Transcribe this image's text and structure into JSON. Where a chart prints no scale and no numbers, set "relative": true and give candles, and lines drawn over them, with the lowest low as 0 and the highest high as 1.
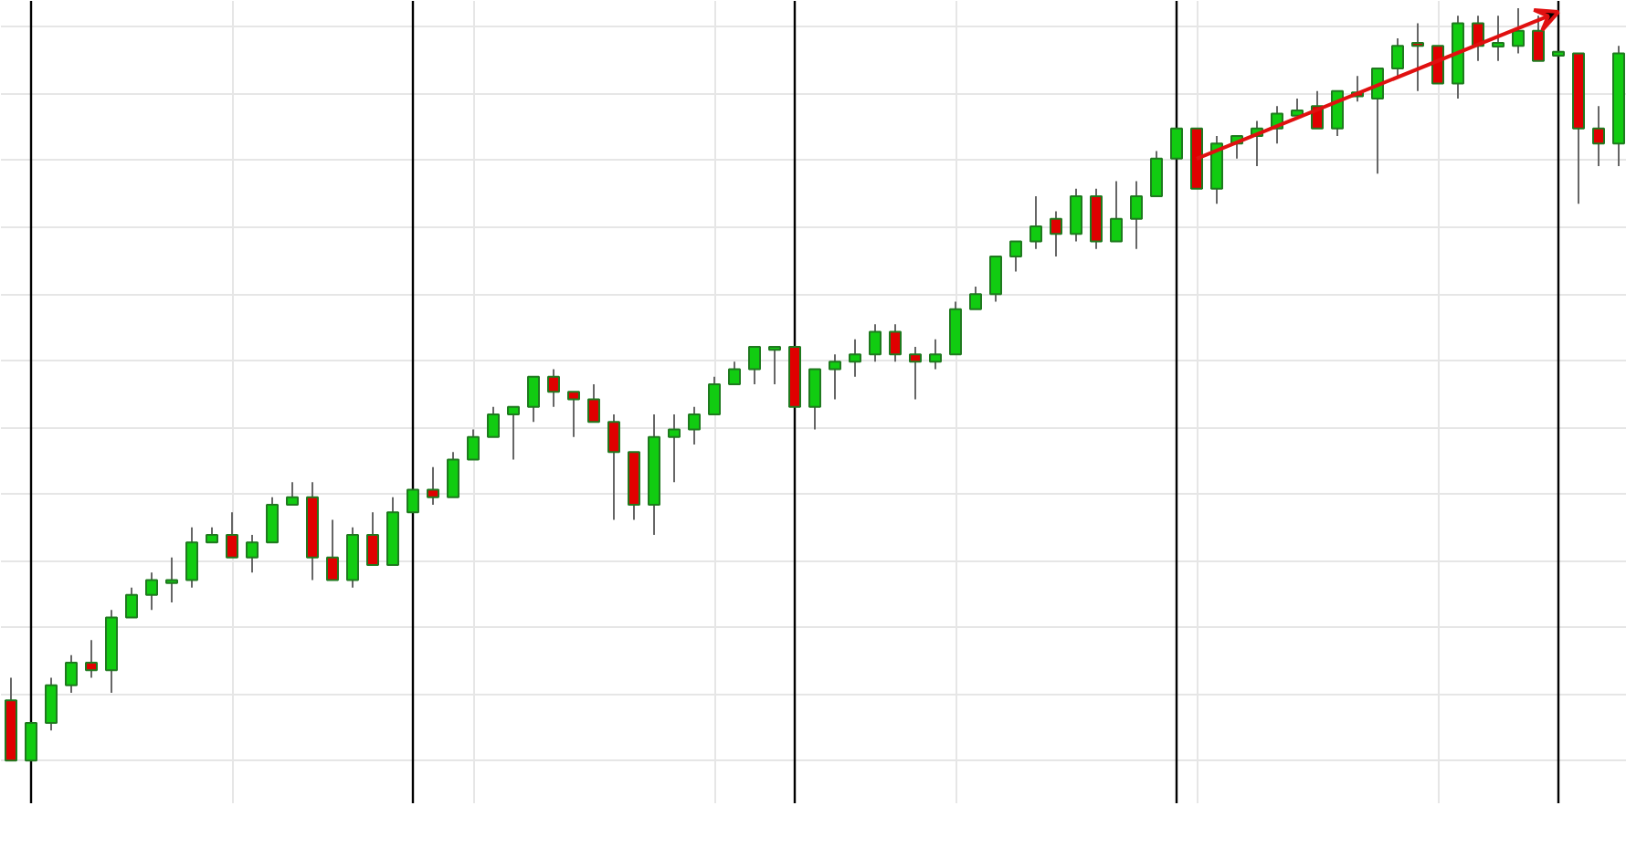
{
  "chart_data": {
    "type": "candlestick",
    "relative": true,
    "grid": true,
    "categories": [
      null,
      null,
      null,
      null,
      null,
      null,
      null,
      null,
      null,
      null,
      null,
      null,
      null,
      null,
      null,
      null,
      null,
      null,
      null,
      null,
      null,
      null,
      null,
      null,
      null,
      null,
      null,
      null,
      null,
      null,
      null,
      null,
      null,
      null,
      null,
      null,
      null,
      null,
      null,
      null,
      null,
      null,
      null,
      null,
      null,
      null,
      null,
      null,
      null,
      null,
      null,
      null,
      null,
      null,
      null,
      null,
      null,
      null,
      null,
      null,
      null,
      null,
      null,
      null,
      null,
      null,
      null,
      null,
      null,
      null,
      null,
      null,
      null,
      null,
      null,
      null,
      null,
      null,
      null,
      null,
      null
    ],
    "ohlc": [
      [
        0.08,
        0.11,
        0,
        0
      ],
      [
        0,
        0.05,
        0,
        0.05
      ],
      [
        0.05,
        0.11,
        0.04,
        0.1
      ],
      [
        0.1,
        0.14,
        0.09,
        0.13
      ],
      [
        0.13,
        0.16,
        0.11,
        0.12
      ],
      [
        0.12,
        0.2,
        0.09,
        0.19
      ],
      [
        0.19,
        0.23,
        0.19,
        0.22
      ],
      [
        0.22,
        0.25,
        0.2,
        0.24
      ],
      [
        0.24,
        0.27,
        0.21,
        0.24
      ],
      [
        0.24,
        0.31,
        0.23,
        0.29
      ],
      [
        0.29,
        0.31,
        0.29,
        0.3
      ],
      [
        0.3,
        0.33,
        0.27,
        0.27
      ],
      [
        0.27,
        0.3,
        0.25,
        0.29
      ],
      [
        0.29,
        0.35,
        0.29,
        0.34
      ],
      [
        0.34,
        0.37,
        0.34,
        0.35
      ],
      [
        0.35,
        0.37,
        0.24,
        0.27
      ],
      [
        0.27,
        0.32,
        0.24,
        0.24
      ],
      [
        0.24,
        0.31,
        0.23,
        0.3
      ],
      [
        0.3,
        0.33,
        0.26,
        0.26
      ],
      [
        0.26,
        0.35,
        0.26,
        0.33
      ],
      [
        0.33,
        0.36,
        0.33,
        0.36
      ],
      [
        0.36,
        0.39,
        0.34,
        0.35
      ],
      [
        0.35,
        0.41,
        0.35,
        0.4
      ],
      [
        0.4,
        0.44,
        0.4,
        0.43
      ],
      [
        0.43,
        0.47,
        0.43,
        0.46
      ],
      [
        0.46,
        0.47,
        0.4,
        0.47
      ],
      [
        0.47,
        0.51,
        0.45,
        0.51
      ],
      [
        0.51,
        0.52,
        0.47,
        0.49
      ],
      [
        0.49,
        0.49,
        0.43,
        0.48
      ],
      [
        0.48,
        0.5,
        0.45,
        0.45
      ],
      [
        0.45,
        0.46,
        0.32,
        0.41
      ],
      [
        0.41,
        0.41,
        0.32,
        0.34
      ],
      [
        0.34,
        0.46,
        0.3,
        0.43
      ],
      [
        0.43,
        0.46,
        0.37,
        0.44
      ],
      [
        0.44,
        0.47,
        0.42,
        0.46
      ],
      [
        0.46,
        0.51,
        0.46,
        0.5
      ],
      [
        0.5,
        0.53,
        0.5,
        0.52
      ],
      [
        0.52,
        0.55,
        0.5,
        0.55
      ],
      [
        0.55,
        0.55,
        0.5,
        0.55
      ],
      [
        0.55,
        0.55,
        0.47,
        0.47
      ],
      [
        0.47,
        0.52,
        0.44,
        0.52
      ],
      [
        0.52,
        0.54,
        0.48,
        0.53
      ],
      [
        0.53,
        0.56,
        0.51,
        0.54
      ],
      [
        0.54,
        0.58,
        0.53,
        0.57
      ],
      [
        0.57,
        0.58,
        0.53,
        0.54
      ],
      [
        0.54,
        0.55,
        0.48,
        0.53
      ],
      [
        0.53,
        0.56,
        0.52,
        0.54
      ],
      [
        0.54,
        0.61,
        0.54,
        0.6
      ],
      [
        0.6,
        0.63,
        0.6,
        0.62
      ],
      [
        0.62,
        0.67,
        0.61,
        0.67
      ],
      [
        0.67,
        0.69,
        0.65,
        0.69
      ],
      [
        0.69,
        0.75,
        0.68,
        0.71
      ],
      [
        0.72,
        0.73,
        0.67,
        0.7
      ],
      [
        0.7,
        0.76,
        0.69,
        0.75
      ],
      [
        0.75,
        0.76,
        0.68,
        0.69
      ],
      [
        0.69,
        0.77,
        0.69,
        0.72
      ],
      [
        0.72,
        0.77,
        0.68,
        0.75
      ],
      [
        0.75,
        0.81,
        0.75,
        0.8
      ],
      [
        0.8,
        0.84,
        0.8,
        0.84
      ],
      [
        0.84,
        0.84,
        0.76,
        0.76
      ],
      [
        0.76,
        0.83,
        0.74,
        0.82
      ],
      [
        0.82,
        0.83,
        0.8,
        0.83
      ],
      [
        0.83,
        0.85,
        0.79,
        0.84
      ],
      [
        0.84,
        0.87,
        0.82,
        0.86
      ],
      [
        0.857,
        0.88,
        0.857,
        0.864
      ],
      [
        0.87,
        0.89,
        0.84,
        0.84
      ],
      [
        0.84,
        0.89,
        0.83,
        0.89
      ],
      [
        0.888,
        0.91,
        0.876,
        0.883
      ],
      [
        0.88,
        0.92,
        0.78,
        0.92
      ],
      [
        0.92,
        0.96,
        0.91,
        0.95
      ],
      [
        0.954,
        0.98,
        0.89,
        0.951
      ],
      [
        0.95,
        0.95,
        0.9,
        0.9
      ],
      [
        0.9,
        0.99,
        0.88,
        0.98
      ],
      [
        0.98,
        0.99,
        0.93,
        0.95
      ],
      [
        0.949,
        0.99,
        0.93,
        0.954
      ],
      [
        0.95,
        1,
        0.94,
        0.97
      ],
      [
        0.97,
        0.99,
        0.93,
        0.93
      ],
      [
        0.937,
        0.942,
        0.937,
        0.942
      ],
      [
        0.94,
        0.94,
        0.74,
        0.84
      ],
      [
        0.84,
        0.87,
        0.79,
        0.82
      ],
      [
        0.82,
        0.95,
        0.79,
        0.94
      ]
    ]
  }
}
